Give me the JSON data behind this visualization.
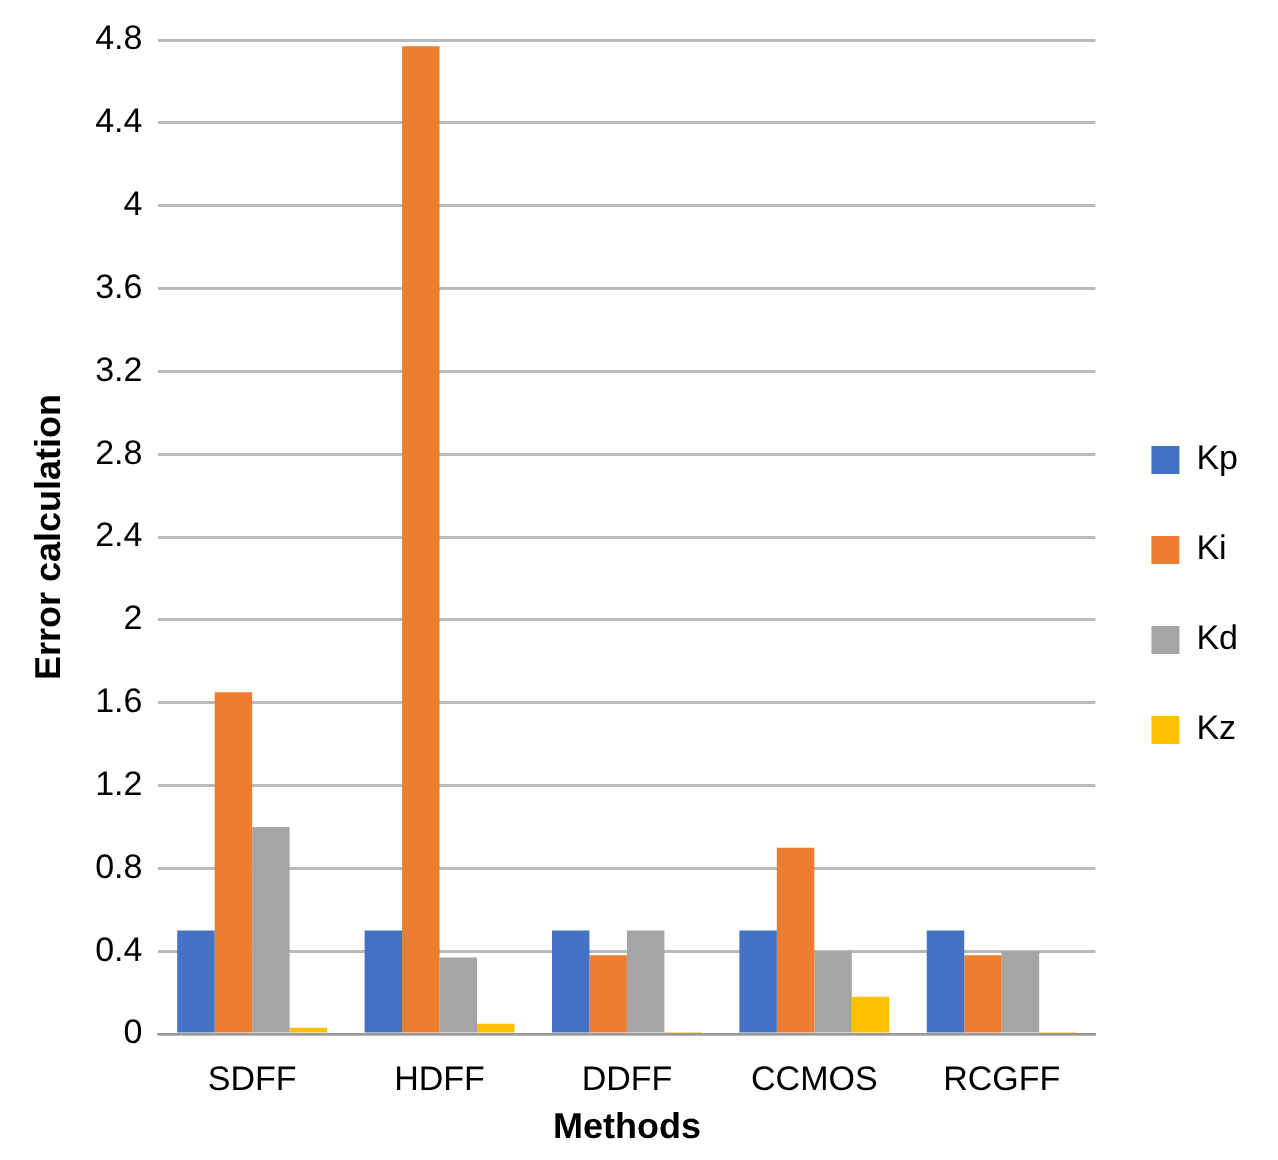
{
  "chart_data": {
    "type": "bar",
    "xlabel": "Methods",
    "ylabel": "Error calculation",
    "categories": [
      "SDFF",
      "HDFF",
      "DDFF",
      "CCMOS",
      "RCGFF"
    ],
    "series": [
      {
        "name": "Kp",
        "color": "#4472c4",
        "values": [
          0.5,
          0.5,
          0.5,
          0.5,
          0.5
        ]
      },
      {
        "name": "Ki",
        "color": "#ed7d31",
        "values": [
          1.65,
          4.77,
          0.38,
          0.9,
          0.38
        ]
      },
      {
        "name": "Kd",
        "color": "#a5a5a5",
        "values": [
          1.0,
          0.37,
          0.5,
          0.4,
          0.4
        ]
      },
      {
        "name": "Kz",
        "color": "#ffc000",
        "values": [
          0.03,
          0.05,
          0.01,
          0.18,
          0.01
        ]
      }
    ],
    "ylim": [
      0,
      4.8
    ],
    "yticks": [
      0,
      0.4,
      0.8,
      1.2,
      1.6,
      2,
      2.4,
      2.8,
      3.2,
      3.6,
      4,
      4.4,
      4.8
    ],
    "grid": "y",
    "legend": "right"
  }
}
